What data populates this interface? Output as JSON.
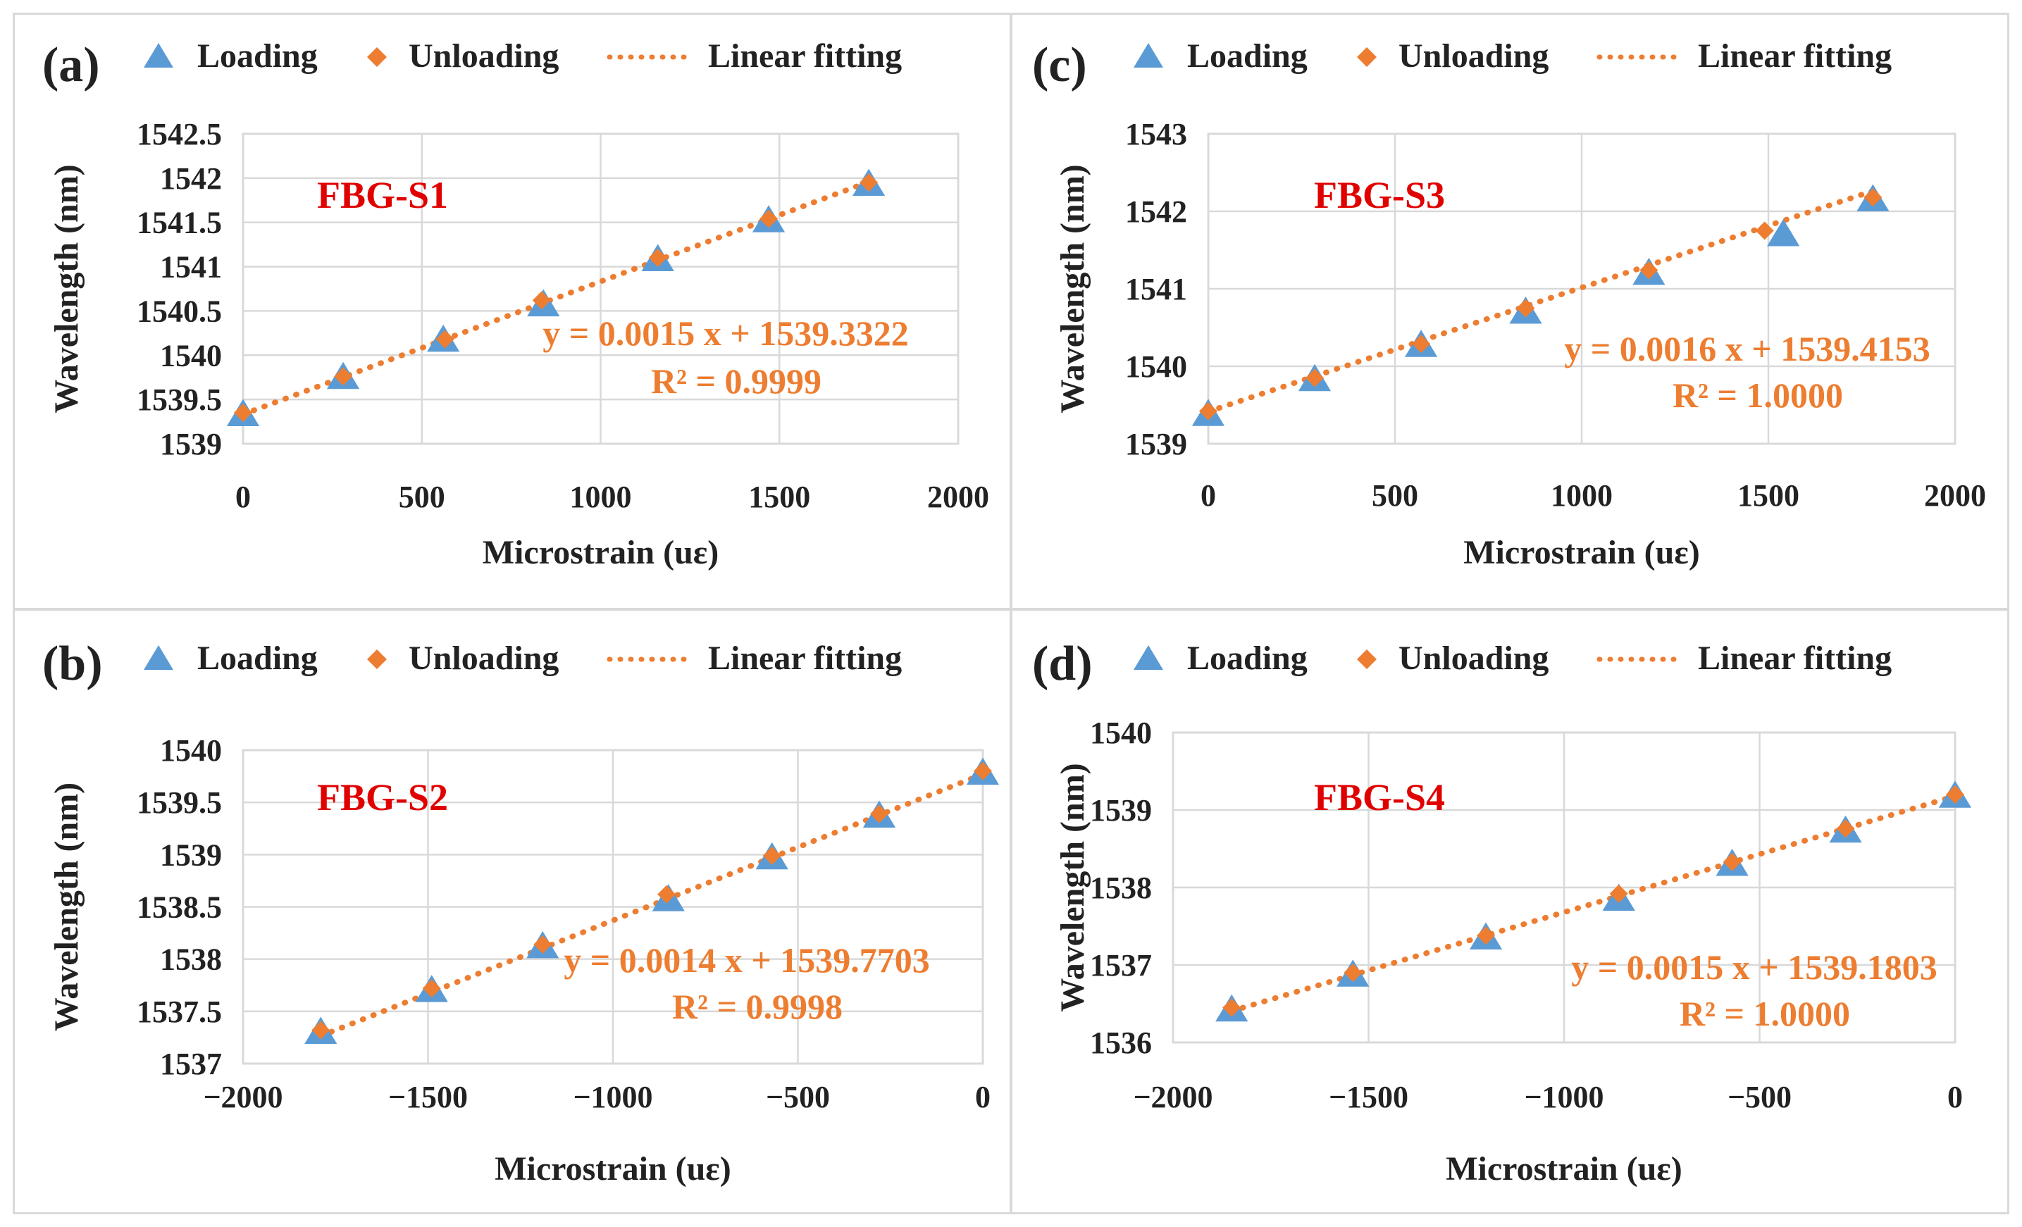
{
  "colors": {
    "loading": "#5b9bd5",
    "unloading": "#ed7d31",
    "fit": "#ed7d31",
    "fit_text": "#ed7d31",
    "sensor_label": "#e00000",
    "text": "#222222",
    "grid": "#d9d9d9"
  },
  "icons": {
    "loading": "triangle-icon",
    "unloading": "diamond-icon",
    "fit": "dotted-line-icon"
  },
  "chart_data": [
    {
      "type": "scatter",
      "panel_label": "(a)",
      "sensor": "FBG-S1",
      "legend": [
        "Loading",
        "Unloading",
        "Linear fitting"
      ],
      "xlabel": "Microstrain (uε)",
      "ylabel": "Wavelength (nm)",
      "xlim": [
        0,
        2000
      ],
      "ylim": [
        1539,
        1542.5
      ],
      "xticks": [
        "0",
        "500",
        "1000",
        "1500",
        "2000"
      ],
      "yticks": [
        "1539",
        "1539.5",
        "1540",
        "1540.5",
        "1541",
        "1541.5",
        "1542",
        "1542.5"
      ],
      "xtick_values": [
        0,
        500,
        1000,
        1500,
        2000
      ],
      "ytick_values": [
        1539,
        1539.5,
        1540,
        1540.5,
        1541,
        1541.5,
        1542,
        1542.5
      ],
      "series": [
        {
          "name": "Loading",
          "marker": "triangle",
          "x": [
            0,
            280,
            560,
            840,
            1160,
            1470,
            1750
          ],
          "y": [
            1539.33,
            1539.75,
            1540.17,
            1540.57,
            1541.08,
            1541.52,
            1541.93
          ]
        },
        {
          "name": "Unloading",
          "marker": "diamond",
          "x": [
            0,
            280,
            565,
            835,
            1160,
            1470,
            1750
          ],
          "y": [
            1539.35,
            1539.76,
            1540.18,
            1540.62,
            1541.1,
            1541.54,
            1541.95
          ]
        }
      ],
      "fit": {
        "slope": 0.0015,
        "intercept": 1539.3322,
        "x_range": [
          0,
          1750
        ]
      },
      "equation": "y = 0.0015 x + 1539.3322",
      "r2": "R² = 0.9999"
    },
    {
      "type": "scatter",
      "panel_label": "(b)",
      "sensor": "FBG-S2",
      "legend": [
        "Loading",
        "Unloading",
        "Linear fitting"
      ],
      "xlabel": "Microstrain (uε)",
      "ylabel": "Wavelength (nm)",
      "xlim": [
        -2000,
        0
      ],
      "ylim": [
        1537,
        1540
      ],
      "xticks": [
        "−2000",
        "−1500",
        "−1000",
        "−500",
        "0"
      ],
      "yticks": [
        "1537",
        "1537.5",
        "1538",
        "1538.5",
        "1539",
        "1539.5",
        "1540"
      ],
      "xtick_values": [
        -2000,
        -1500,
        -1000,
        -500,
        0
      ],
      "ytick_values": [
        1537,
        1537.5,
        1538,
        1538.5,
        1539,
        1539.5,
        1540
      ],
      "series": [
        {
          "name": "Loading",
          "marker": "triangle",
          "x": [
            -1790,
            -1490,
            -1190,
            -850,
            -570,
            -280,
            0
          ],
          "y": [
            1537.3,
            1537.7,
            1538.12,
            1538.57,
            1538.97,
            1539.37,
            1539.78
          ]
        },
        {
          "name": "Unloading",
          "marker": "diamond",
          "x": [
            -1790,
            -1490,
            -1190,
            -855,
            -570,
            -280,
            0
          ],
          "y": [
            1537.32,
            1537.72,
            1538.14,
            1538.62,
            1538.99,
            1539.39,
            1539.8
          ]
        }
      ],
      "fit": {
        "slope": 0.0014,
        "intercept": 1539.7703,
        "x_range": [
          -1790,
          0
        ]
      },
      "equation": "y = 0.0014 x + 1539.7703",
      "r2": "R² = 0.9998"
    },
    {
      "type": "scatter",
      "panel_label": "(c)",
      "sensor": "FBG-S3",
      "legend": [
        "Loading",
        "Unloading",
        "Linear fitting"
      ],
      "xlabel": "Microstrain (uε)",
      "ylabel": "Wavelength (nm)",
      "xlim": [
        0,
        2000
      ],
      "ylim": [
        1539,
        1543
      ],
      "xticks": [
        "0",
        "500",
        "1000",
        "1500",
        "2000"
      ],
      "yticks": [
        "1539",
        "1540",
        "1541",
        "1542",
        "1543"
      ],
      "xtick_values": [
        0,
        500,
        1000,
        1500,
        2000
      ],
      "ytick_values": [
        1539,
        1540,
        1541,
        1542,
        1543
      ],
      "series": [
        {
          "name": "Loading",
          "marker": "triangle",
          "x": [
            0,
            285,
            570,
            850,
            1180,
            1540,
            1780
          ],
          "y": [
            1539.38,
            1539.83,
            1540.27,
            1540.7,
            1541.2,
            1541.7,
            1542.15
          ]
        },
        {
          "name": "Unloading",
          "marker": "diamond",
          "x": [
            0,
            285,
            570,
            850,
            1180,
            1490,
            1780
          ],
          "y": [
            1539.42,
            1539.85,
            1540.29,
            1540.75,
            1541.24,
            1541.75,
            1542.18
          ]
        }
      ],
      "fit": {
        "slope": 0.0016,
        "intercept": 1539.4153,
        "x_range": [
          0,
          1780
        ]
      },
      "equation": "y = 0.0016 x + 1539.4153",
      "r2": "R² = 1.0000"
    },
    {
      "type": "scatter",
      "panel_label": "(d)",
      "sensor": "FBG-S4",
      "legend": [
        "Loading",
        "Unloading",
        "Linear fitting"
      ],
      "xlabel": "Microstrain (uε)",
      "ylabel": "Wavelength (nm)",
      "xlim": [
        -2000,
        0
      ],
      "ylim": [
        1536,
        1540
      ],
      "xticks": [
        "−2000",
        "−1500",
        "−1000",
        "−500",
        "0"
      ],
      "yticks": [
        "1536",
        "1537",
        "1538",
        "1539",
        "1540"
      ],
      "xtick_values": [
        -2000,
        -1500,
        -1000,
        -500,
        0
      ],
      "ytick_values": [
        1536,
        1537,
        1538,
        1539,
        1540
      ],
      "series": [
        {
          "name": "Loading",
          "marker": "triangle",
          "x": [
            -1850,
            -1540,
            -1200,
            -860,
            -570,
            -280,
            0
          ],
          "y": [
            1536.42,
            1536.87,
            1537.35,
            1537.85,
            1538.3,
            1538.73,
            1539.18
          ]
        },
        {
          "name": "Unloading",
          "marker": "diamond",
          "x": [
            -1850,
            -1540,
            -1200,
            -860,
            -570,
            -280,
            0
          ],
          "y": [
            1536.45,
            1536.9,
            1537.38,
            1537.92,
            1538.33,
            1538.76,
            1539.2
          ]
        }
      ],
      "fit": {
        "slope": 0.0015,
        "intercept": 1539.1803,
        "x_range": [
          -1850,
          0
        ]
      },
      "equation": "y = 0.0015 x + 1539.1803",
      "r2": "R² = 1.0000"
    }
  ]
}
